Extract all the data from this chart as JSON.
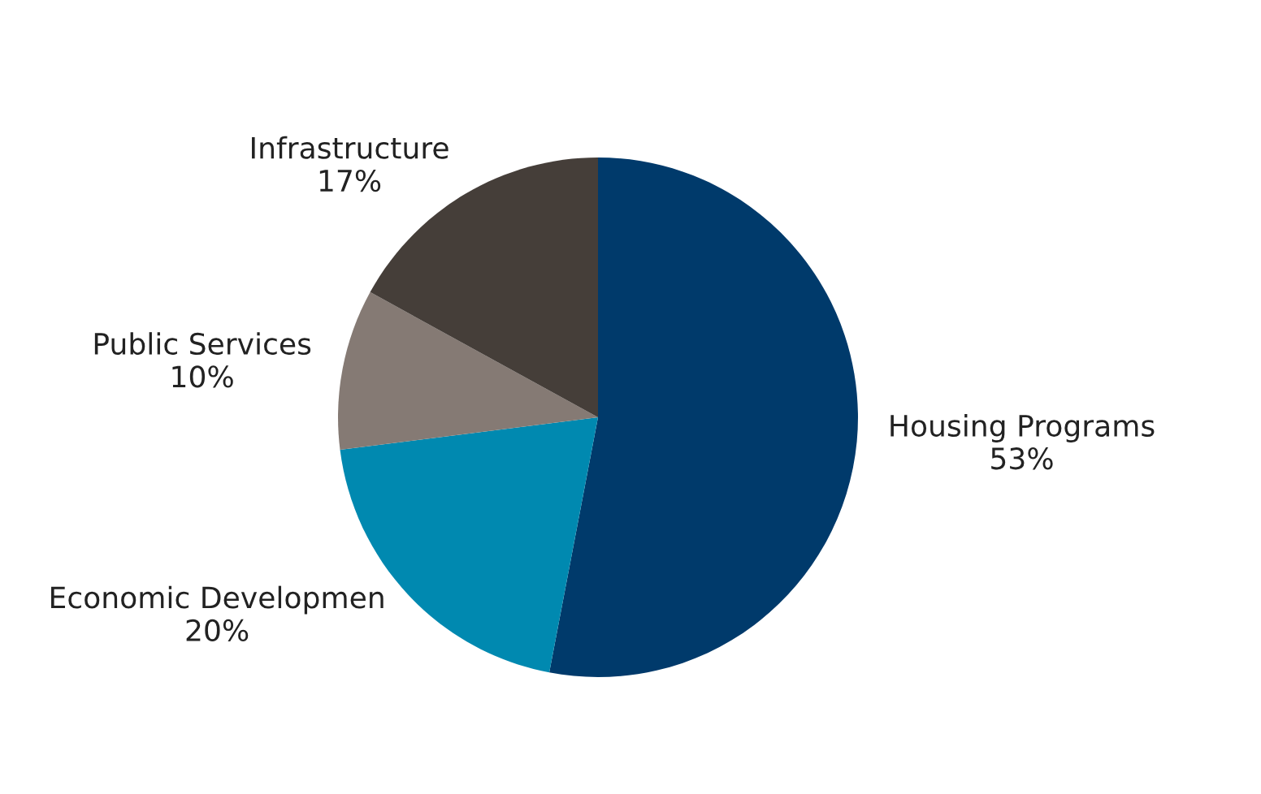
{
  "chart_data": {
    "type": "pie",
    "categories": [
      "Housing Programs",
      "Economic Developmen",
      "Public Services",
      "Infrastructure"
    ],
    "values": [
      53,
      20,
      10,
      17
    ],
    "value_labels": [
      "53%",
      "20%",
      "10%",
      "17%"
    ],
    "colors": [
      "#003a6b",
      "#0089b0",
      "#857a74",
      "#453e39"
    ],
    "legend": false
  }
}
